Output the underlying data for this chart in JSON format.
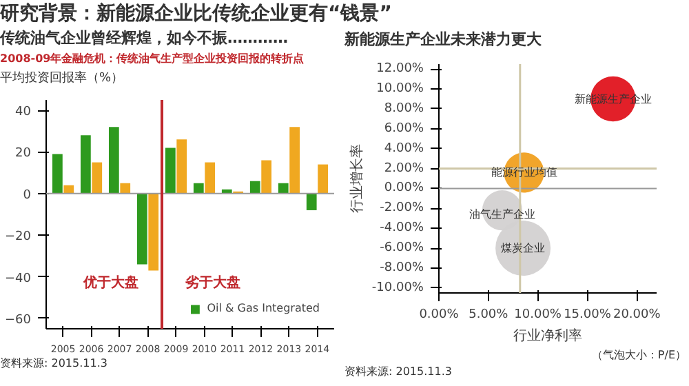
{
  "chart_data": [
    {
      "type": "bar",
      "title": "研究背景：新能源企业比传统企业更有“钱景”",
      "subtitle": "传统油气企业曾经辉煌，如今不振…………",
      "ylabel": "平均投资回报率（%）",
      "categories": [
        "2005",
        "2006",
        "2007",
        "2008",
        "2009",
        "2010",
        "2011",
        "2012",
        "2013",
        "2014"
      ],
      "series": [
        {
          "name": "Oil & Gas Integrated",
          "color": "#2e9a1e",
          "values": [
            19,
            28,
            32,
            -34,
            22,
            5,
            2,
            6,
            5,
            -8
          ]
        },
        {
          "name": null,
          "color": "#f0a820",
          "values": [
            4,
            15,
            5,
            -37,
            26,
            15,
            1,
            16,
            32,
            14
          ]
        }
      ],
      "ylim": [
        -65,
        45
      ],
      "yticks": [
        -60,
        -40,
        -20,
        0,
        20,
        40
      ],
      "grid": false,
      "legend": "bottom",
      "ref_lines": [
        {
          "axis": "x",
          "value": "2008",
          "label": "2008-09年金融危机：传统油气生产型企业投资回报的转折点",
          "color": "#c0282d"
        }
      ],
      "annotations": [
        "优于大盘",
        "劣于大盘",
        "资料来源: 2015.11.3"
      ]
    },
    {
      "type": "bubble",
      "title": "新能源生产企业未来潜力更大",
      "xlabel": "行业净利率",
      "ylabel": "行业增长率",
      "series": [
        {
          "x": [
            17.6
          ],
          "values": [
            9.0
          ],
          "sizes": [
            0.67
          ],
          "color": "#e0141e"
        },
        {
          "x": [
            8.6
          ],
          "values": [
            1.6
          ],
          "sizes": [
            0.53
          ],
          "color": "#f0a020"
        },
        {
          "x": [
            6.4
          ],
          "values": [
            -2.2
          ],
          "sizes": [
            0.53
          ],
          "color": "#d3d1d1"
        },
        {
          "x": [
            8.5
          ],
          "values": [
            -6.0
          ],
          "sizes": [
            1
          ],
          "color": "#d3d1d1"
        }
      ],
      "xlim": [
        0,
        22
      ],
      "xticks": [
        {
          "value": 0,
          "label": "0.00%"
        },
        {
          "value": 5,
          "label": "5.00%"
        },
        {
          "value": 10,
          "label": "10.00%"
        },
        {
          "value": 15,
          "label": "15.00%"
        },
        {
          "value": 20,
          "label": "20.00%"
        }
      ],
      "ylim": [
        -10.5,
        12.5
      ],
      "yticks": [
        {
          "value": -10,
          "label": "-10.00%"
        },
        {
          "value": -8,
          "label": "-8.00%"
        },
        {
          "value": -6,
          "label": "-6.00%"
        },
        {
          "value": -4,
          "label": "-4.00%"
        },
        {
          "value": -2,
          "label": "-2.00%"
        },
        {
          "value": 0,
          "label": "0.00%"
        },
        {
          "value": 2,
          "label": "2.00%"
        },
        {
          "value": 4,
          "label": "4.00%"
        },
        {
          "value": 6,
          "label": "6.00%"
        },
        {
          "value": 8,
          "label": "8.00%"
        },
        {
          "value": 10,
          "label": "10.00%"
        },
        {
          "value": 12,
          "label": "12.00%"
        }
      ],
      "grid": false,
      "ref_lines": [
        {
          "axis": "x",
          "value": 8.2,
          "color": "#cfc7a8"
        },
        {
          "axis": "y",
          "value": 2,
          "color": "#cfc7a8"
        }
      ],
      "annotations": [
        {
          "text": "新能源生产企业",
          "x": 17.6,
          "y": 9.0
        },
        {
          "text": "能源行业均值",
          "x": 8.6,
          "y": 1.6
        },
        {
          "text": "油气生产企业",
          "x": 6.4,
          "y": -2.6
        },
        {
          "text": "煤炭企业",
          "x": 8.5,
          "y": -6.0
        },
        "（气泡大小：P/E）",
        "资料来源: 2015.11.3"
      ]
    }
  ]
}
